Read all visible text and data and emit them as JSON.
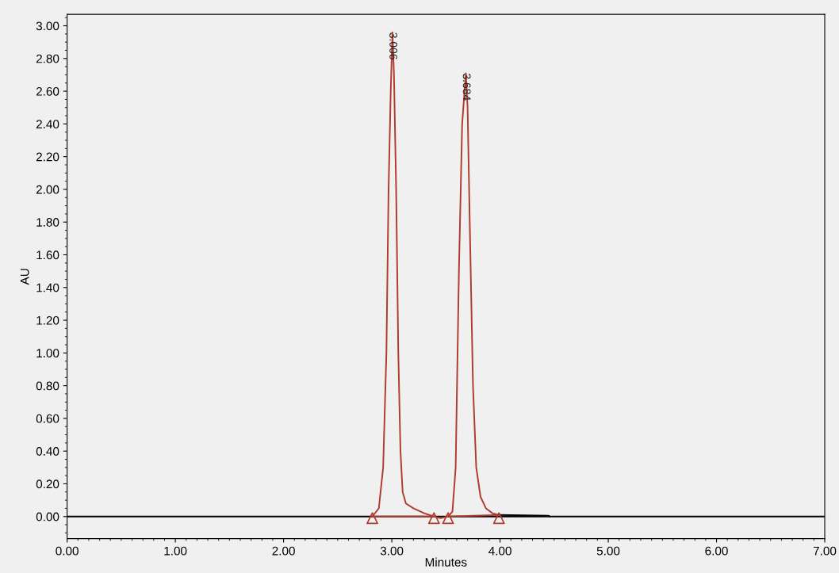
{
  "chart_data": {
    "type": "line",
    "xlabel": "Minutes",
    "ylabel": "AU",
    "grid": false,
    "ref_lines": [
      {
        "axis": "y",
        "value": 0,
        "color": "#000000",
        "line_style": "solid"
      }
    ],
    "xlim": [
      0,
      7
    ],
    "ylim": [
      -0.135,
      3.07
    ],
    "xticks": [
      {
        "value": 0,
        "label": "0.00"
      },
      {
        "value": 1,
        "label": "1.00"
      },
      {
        "value": 2,
        "label": "2.00"
      },
      {
        "value": 3,
        "label": "3.00"
      },
      {
        "value": 4,
        "label": "4.00"
      },
      {
        "value": 5,
        "label": "5.00"
      },
      {
        "value": 6,
        "label": "6.00"
      },
      {
        "value": 7,
        "label": "7.00"
      }
    ],
    "yticks": [
      {
        "value": 0,
        "label": "0.00"
      },
      {
        "value": 0.2,
        "label": "0.20"
      },
      {
        "value": 0.4,
        "label": "0.40"
      },
      {
        "value": 0.6,
        "label": "0.60"
      },
      {
        "value": 0.8,
        "label": "0.80"
      },
      {
        "value": 1.0,
        "label": "1.00"
      },
      {
        "value": 1.2,
        "label": "1.20"
      },
      {
        "value": 1.4,
        "label": "1.40"
      },
      {
        "value": 1.6,
        "label": "1.60"
      },
      {
        "value": 1.8,
        "label": "1.80"
      },
      {
        "value": 2.0,
        "label": "2.00"
      },
      {
        "value": 2.2,
        "label": "2.20"
      },
      {
        "value": 2.4,
        "label": "2.40"
      },
      {
        "value": 2.6,
        "label": "2.60"
      },
      {
        "value": 2.8,
        "label": "2.80"
      },
      {
        "value": 3.0,
        "label": "3.00"
      }
    ],
    "series": [
      {
        "color": "#000000",
        "marker": "none",
        "x": [
          3.99,
          4.45,
          4.46
        ],
        "values": [
          0.01,
          0.005,
          0
        ]
      },
      {
        "color": "#b03a2e",
        "marker": "none",
        "x": [
          2.82,
          2.88,
          2.92,
          2.95,
          2.97,
          2.99,
          3.006,
          3.02,
          3.04,
          3.06,
          3.08,
          3.1,
          3.13,
          3.2,
          3.3,
          3.39,
          3.45,
          3.52,
          3.56,
          3.59,
          3.62,
          3.65,
          3.684,
          3.7,
          3.72,
          3.75,
          3.78,
          3.82,
          3.87,
          3.93,
          3.99
        ],
        "values": [
          0,
          0.05,
          0.3,
          1.0,
          2.0,
          2.6,
          2.96,
          2.7,
          2.0,
          1.0,
          0.4,
          0.15,
          0.08,
          0.05,
          0.02,
          0,
          -0.01,
          0,
          0.03,
          0.3,
          1.5,
          2.4,
          2.71,
          2.5,
          1.8,
          0.8,
          0.3,
          0.12,
          0.05,
          0.02,
          0.01
        ]
      },
      {
        "color": "#b03a2e",
        "marker": "none",
        "x": [
          2.82,
          3.39,
          null,
          3.52,
          3.99
        ],
        "values": [
          0,
          0,
          null,
          0,
          0.01
        ]
      },
      {
        "type": "scatter",
        "color": "#b03a2e",
        "marker": "triangle",
        "x": [
          2.82,
          3.39,
          3.52,
          3.99
        ],
        "values": [
          -0.01,
          -0.01,
          -0.01,
          -0.01
        ]
      }
    ],
    "annotations": [
      {
        "text": "3.006",
        "x": 3.006,
        "y": 2.96
      },
      {
        "text": "3.684",
        "x": 3.684,
        "y": 2.71
      }
    ]
  }
}
